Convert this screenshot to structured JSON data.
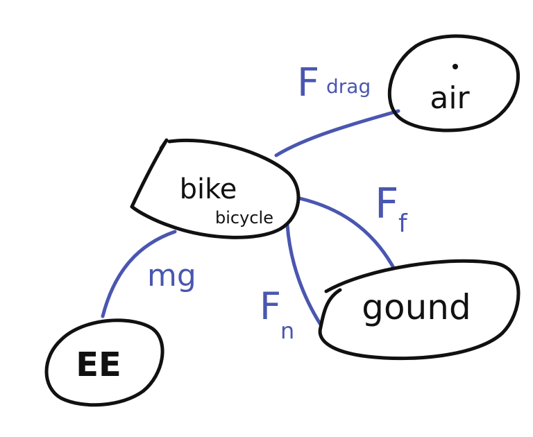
{
  "colors": {
    "ink": "#111111",
    "edge": "#4a56b0",
    "background": "#ffffff"
  },
  "nodes": {
    "air": {
      "label": "air"
    },
    "bike": {
      "label": "bike",
      "sublabel": "bicycle"
    },
    "ground": {
      "label": "gound"
    },
    "earth": {
      "label": "EE"
    }
  },
  "edges": {
    "drag": {
      "label": "F",
      "subscript": "drag"
    },
    "friction": {
      "label": "F",
      "subscript": "f"
    },
    "normal": {
      "label": "F",
      "subscript": "n"
    },
    "gravity": {
      "label": "mg"
    }
  }
}
